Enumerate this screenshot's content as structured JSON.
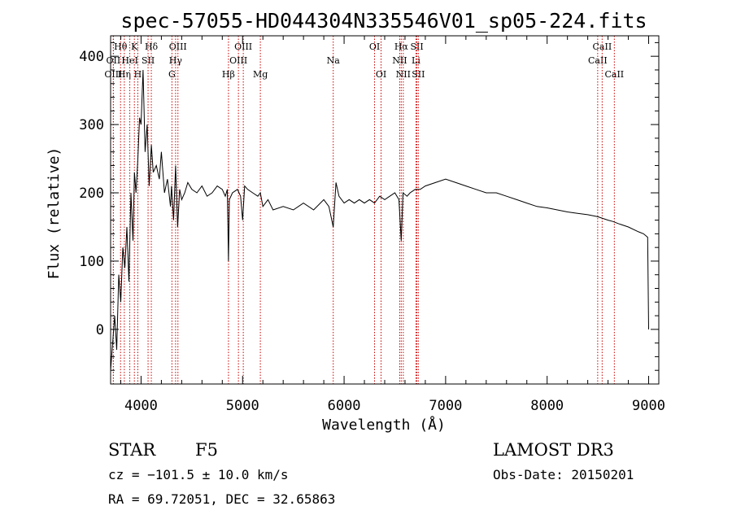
{
  "chart_data": {
    "type": "line",
    "title": "spec-57055-HD044304N335546V01_sp05-224.fits",
    "xlabel": "Wavelength (Å)",
    "ylabel": "Flux (relative)",
    "xlim": [
      3700,
      9100
    ],
    "ylim": [
      -80,
      430
    ],
    "x_ticks": [
      4000,
      5000,
      6000,
      7000,
      8000,
      9000
    ],
    "y_ticks": [
      0,
      100,
      200,
      300,
      400
    ],
    "series": [
      {
        "name": "spectrum",
        "x": [
          3700,
          3720,
          3740,
          3760,
          3780,
          3800,
          3820,
          3840,
          3860,
          3880,
          3900,
          3920,
          3935,
          3950,
          3968,
          3985,
          4000,
          4020,
          4040,
          4060,
          4080,
          4101,
          4120,
          4150,
          4180,
          4200,
          4230,
          4260,
          4290,
          4300,
          4320,
          4340,
          4360,
          4380,
          4400,
          4430,
          4460,
          4500,
          4550,
          4600,
          4650,
          4700,
          4750,
          4800,
          4830,
          4850,
          4861,
          4870,
          4900,
          4950,
          4980,
          5000,
          5020,
          5050,
          5100,
          5150,
          5175,
          5200,
          5250,
          5300,
          5400,
          5500,
          5600,
          5700,
          5800,
          5850,
          5893,
          5920,
          5950,
          6000,
          6050,
          6100,
          6150,
          6200,
          6250,
          6300,
          6350,
          6400,
          6450,
          6500,
          6540,
          6563,
          6580,
          6620,
          6650,
          6700,
          6750,
          6800,
          6900,
          7000,
          7100,
          7200,
          7300,
          7400,
          7500,
          7600,
          7700,
          7800,
          7900,
          8000,
          8100,
          8200,
          8300,
          8400,
          8500,
          8540,
          8600,
          8650,
          8700,
          8800,
          8900,
          8950,
          8990,
          9000
        ],
        "y": [
          -60,
          -20,
          20,
          -30,
          80,
          40,
          120,
          90,
          150,
          70,
          200,
          130,
          230,
          200,
          250,
          310,
          300,
          380,
          260,
          300,
          210,
          270,
          230,
          240,
          220,
          260,
          200,
          220,
          180,
          210,
          160,
          240,
          150,
          205,
          190,
          200,
          215,
          205,
          200,
          210,
          195,
          200,
          210,
          205,
          195,
          205,
          100,
          190,
          200,
          205,
          195,
          160,
          210,
          205,
          200,
          195,
          200,
          180,
          190,
          175,
          180,
          175,
          185,
          175,
          190,
          180,
          150,
          215,
          195,
          185,
          190,
          185,
          190,
          185,
          190,
          185,
          195,
          190,
          195,
          200,
          190,
          130,
          200,
          195,
          200,
          205,
          205,
          210,
          215,
          220,
          215,
          210,
          205,
          200,
          200,
          195,
          190,
          185,
          180,
          178,
          175,
          172,
          170,
          168,
          165,
          163,
          160,
          158,
          155,
          150,
          143,
          140,
          135,
          0
        ]
      }
    ],
    "emission_lines": [
      {
        "name": "Hθ",
        "wavelength": 3798,
        "row": 0
      },
      {
        "name": "OII",
        "wavelength": 3727,
        "row": 1
      },
      {
        "name": "OIII",
        "wavelength": 3727,
        "row": 2
      },
      {
        "name": "Hη",
        "wavelength": 3835,
        "row": 2
      },
      {
        "name": "HeI",
        "wavelength": 3889,
        "row": 1
      },
      {
        "name": "K",
        "wavelength": 3934,
        "row": 0
      },
      {
        "name": "SII",
        "wavelength": 4069,
        "row": 1
      },
      {
        "name": "H",
        "wavelength": 3968,
        "row": 2
      },
      {
        "name": "Hδ",
        "wavelength": 4101,
        "row": 0
      },
      {
        "name": "OIII",
        "wavelength": 4363,
        "row": 0
      },
      {
        "name": "Hγ",
        "wavelength": 4340,
        "row": 1
      },
      {
        "name": "G",
        "wavelength": 4304,
        "row": 2
      },
      {
        "name": "Hβ",
        "wavelength": 4861,
        "row": 2
      },
      {
        "name": "OIII",
        "wavelength": 4959,
        "row": 1
      },
      {
        "name": "OIII",
        "wavelength": 5007,
        "row": 0
      },
      {
        "name": "Mg",
        "wavelength": 5175,
        "row": 2
      },
      {
        "name": "Na",
        "wavelength": 5893,
        "row": 1
      },
      {
        "name": "OI",
        "wavelength": 6300,
        "row": 0
      },
      {
        "name": "OI",
        "wavelength": 6364,
        "row": 2
      },
      {
        "name": "Hα",
        "wavelength": 6563,
        "row": 0
      },
      {
        "name": "NII",
        "wavelength": 6548,
        "row": 1
      },
      {
        "name": "NII",
        "wavelength": 6583,
        "row": 2
      },
      {
        "name": "SII",
        "wavelength": 6717,
        "row": 0
      },
      {
        "name": "Li",
        "wavelength": 6708,
        "row": 1
      },
      {
        "name": "SII",
        "wavelength": 6731,
        "row": 2
      },
      {
        "name": "CaII",
        "wavelength": 8498,
        "row": 1
      },
      {
        "name": "CaII",
        "wavelength": 8542,
        "row": 0
      },
      {
        "name": "CaII",
        "wavelength": 8662,
        "row": 2
      }
    ]
  },
  "info": {
    "object_class": "STAR",
    "subclass": "F5",
    "survey": "LAMOST DR3",
    "cz": "cz = −101.5 ± 10.0 km/s",
    "obs_date": "Obs-Date: 20150201",
    "coords": "RA =  69.72051, DEC =  32.65863"
  },
  "colors": {
    "spectrum": "#000000",
    "emission_line": "#cc0000",
    "axes": "#000000",
    "background": "#ffffff"
  }
}
